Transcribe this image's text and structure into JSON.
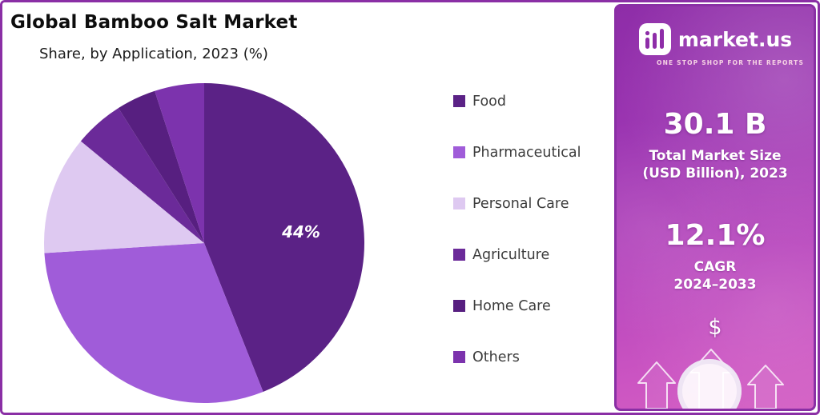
{
  "chart_data": {
    "type": "pie",
    "title": "Global Bamboo Salt Market",
    "subtitle": "Share, by Application, 2023 (%)",
    "categories": [
      "Food",
      "Pharmaceutical",
      "Personal Care",
      "Agriculture",
      "Home Care",
      "Others"
    ],
    "values": [
      44,
      30,
      12,
      5,
      4,
      5
    ],
    "colors": [
      "#5b2286",
      "#a05cd9",
      "#dec9f1",
      "#6b2a99",
      "#571f80",
      "#7c33ad"
    ],
    "data_labels": [
      "44%",
      "",
      "",
      "",
      "",
      ""
    ],
    "start_angle_deg": 0,
    "direction": "clockwise",
    "legend_position": "right",
    "background": "#ffffff"
  },
  "panel": {
    "brand_name": "market.us",
    "brand_tagline": "ONE STOP SHOP FOR THE REPORTS",
    "market_size_value": "30.1 B",
    "market_size_label_line1": "Total Market Size",
    "market_size_label_line2": "(USD Billion), 2023",
    "cagr_value": "12.1%",
    "cagr_label_line1": "CAGR",
    "cagr_label_line2": "2024–2033",
    "dollar_symbol": "$",
    "gradient_top_color": "#8e2da8",
    "gradient_bottom_color": "#d35fc3",
    "border_color": "#8a2fa5"
  }
}
